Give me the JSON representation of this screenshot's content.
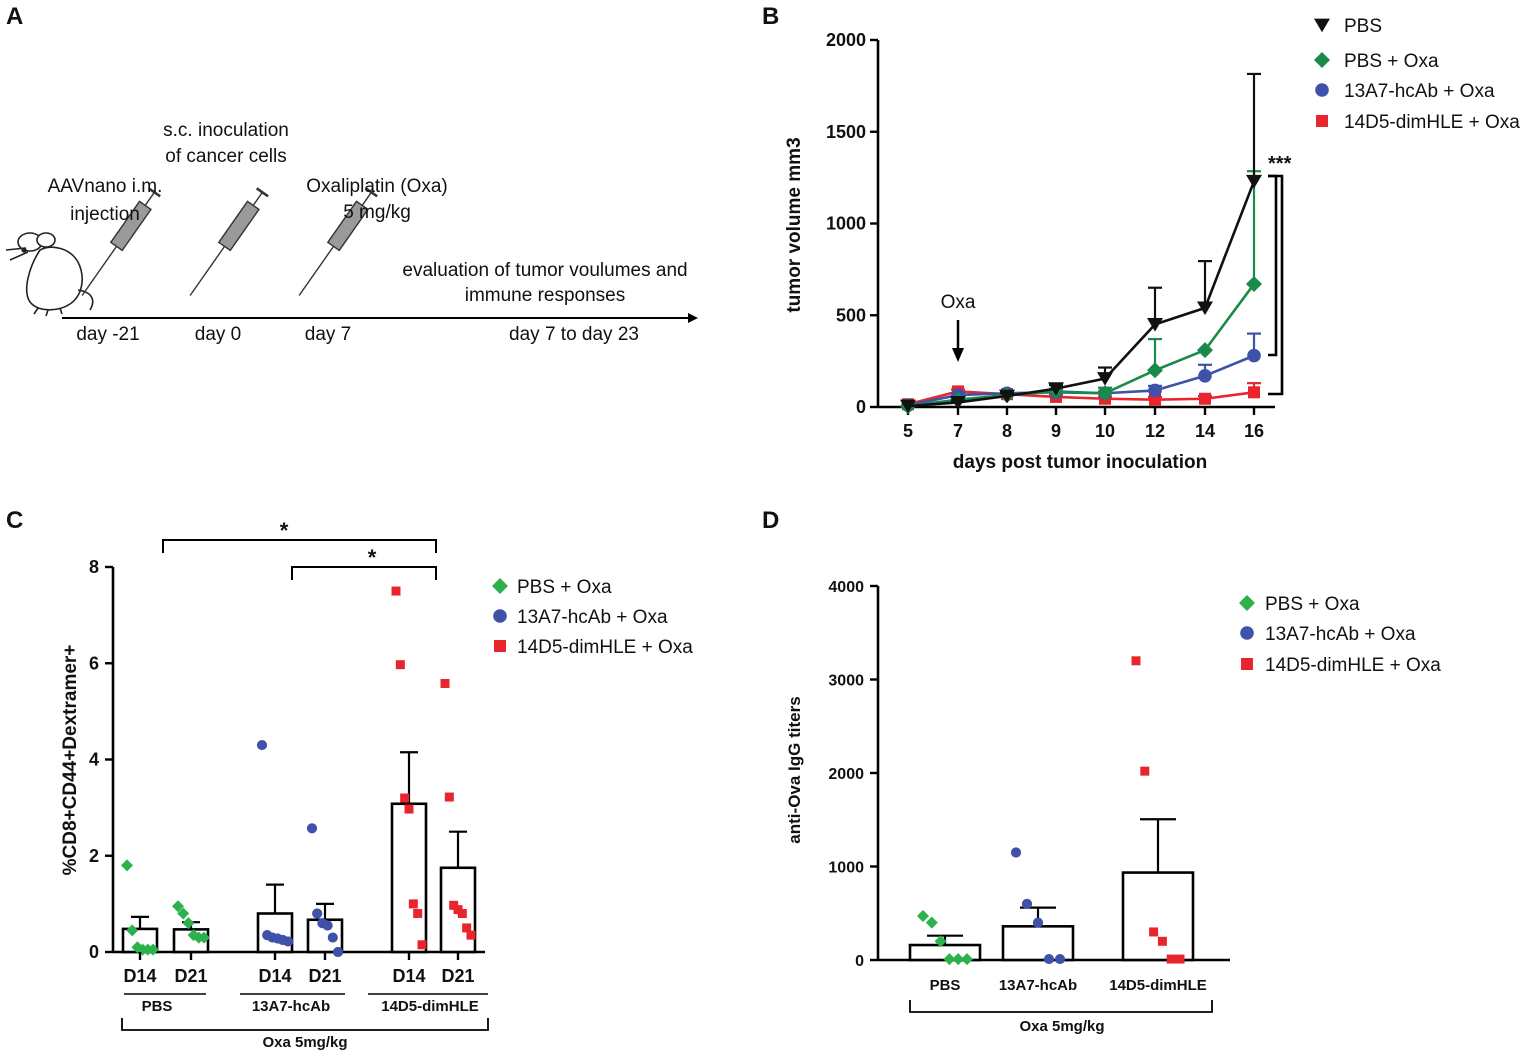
{
  "colors": {
    "black": "#111111",
    "green": "#1a8a4a",
    "lightgreen": "#2bb24c",
    "blue": "#3f51a8",
    "red": "#e8252c"
  },
  "panel_a": {
    "label": "A",
    "steps": [
      {
        "text1": "AAVnano i.m.",
        "text2": "injection",
        "day": "day -21"
      },
      {
        "text1": "s.c. inoculation",
        "text2": "of cancer cells",
        "day": "day 0"
      },
      {
        "text1": "Oxaliplatin (Oxa)",
        "text2": "5 mg/kg",
        "day": "day 7"
      },
      {
        "text1": "evaluation of tumor voulumes and",
        "text2": "immune responses",
        "day": "day 7 to day 23"
      }
    ]
  },
  "chart_data": [
    {
      "panel": "B",
      "type": "line",
      "title": "",
      "xlabel": "days post tumor inoculation",
      "ylabel": "tumor volume mm3",
      "categories": [
        "5",
        "7",
        "8",
        "9",
        "10",
        "12",
        "14",
        "16"
      ],
      "ylim": [
        0,
        2000
      ],
      "yticks": [
        "0",
        "500",
        "1000",
        "1500",
        "2000"
      ],
      "series": [
        {
          "name": "PBS",
          "color": "#111111",
          "marker": "triangle-down",
          "values": [
            5,
            25,
            60,
            100,
            155,
            450,
            540,
            1230
          ],
          "errors": [
            0,
            10,
            15,
            20,
            60,
            200,
            255,
            585
          ]
        },
        {
          "name": "PBS + Oxa",
          "color": "#1a8a4a",
          "marker": "diamond",
          "values": [
            5,
            40,
            65,
            85,
            75,
            200,
            310,
            670
          ],
          "errors": [
            0,
            10,
            12,
            15,
            30,
            170,
            0,
            615
          ]
        },
        {
          "name": "13A7-hcAb + Oxa",
          "color": "#3f51a8",
          "marker": "circle",
          "values": [
            10,
            65,
            75,
            80,
            75,
            90,
            170,
            280
          ],
          "errors": [
            0,
            10,
            10,
            10,
            10,
            25,
            60,
            120
          ]
        },
        {
          "name": "14D5-dimHLE + Oxa",
          "color": "#e8252c",
          "marker": "square",
          "values": [
            15,
            85,
            70,
            55,
            45,
            40,
            45,
            80
          ],
          "errors": [
            0,
            10,
            10,
            10,
            10,
            15,
            15,
            50
          ]
        }
      ],
      "annotations": {
        "arrow_label": "Oxa",
        "arrow_day": "7",
        "significance": "***"
      }
    },
    {
      "panel": "C",
      "type": "bar",
      "title": "",
      "xlabel": "Oxa 5mg/kg",
      "ylabel": "%CD8+CD44+Dextramer+",
      "ylim": [
        0,
        8
      ],
      "yticks": [
        "0",
        "2",
        "4",
        "6",
        "8"
      ],
      "groups": [
        "PBS",
        "13A7-hcAb",
        "14D5-dimHLE"
      ],
      "categories": [
        "D14",
        "D21",
        "D14",
        "D21",
        "D14",
        "D21"
      ],
      "legend": [
        "PBS + Oxa",
        "13A7-hcAb + Oxa",
        "14D5-dimHLE + Oxa"
      ],
      "bars": [
        {
          "group": "PBS",
          "day": "D14",
          "mean": 0.48,
          "sem": 0.25,
          "color": "#2bb24c",
          "marker": "diamond",
          "points": [
            1.8,
            0.45,
            0.1,
            0.05,
            0.05,
            0.05
          ]
        },
        {
          "group": "PBS",
          "day": "D21",
          "mean": 0.47,
          "sem": 0.15,
          "color": "#2bb24c",
          "marker": "diamond",
          "points": [
            0.95,
            0.8,
            0.6,
            0.35,
            0.3,
            0.3
          ]
        },
        {
          "group": "13A7-hcAb",
          "day": "D14",
          "mean": 0.8,
          "sem": 0.6,
          "color": "#3f51a8",
          "marker": "circle",
          "points": [
            4.3,
            0.35,
            0.3,
            0.28,
            0.25,
            0.22
          ]
        },
        {
          "group": "13A7-hcAb",
          "day": "D21",
          "mean": 0.67,
          "sem": 0.33,
          "color": "#3f51a8",
          "marker": "circle",
          "points": [
            2.57,
            0.8,
            0.6,
            0.55,
            0.3,
            0.0
          ]
        },
        {
          "group": "14D5-dimHLE",
          "day": "D14",
          "mean": 3.08,
          "sem": 1.07,
          "color": "#e8252c",
          "marker": "square",
          "points": [
            7.5,
            5.97,
            3.2,
            2.97,
            1.0,
            0.8,
            0.15
          ]
        },
        {
          "group": "14D5-dimHLE",
          "day": "D21",
          "mean": 1.75,
          "sem": 0.75,
          "color": "#e8252c",
          "marker": "square",
          "points": [
            5.58,
            3.22,
            0.97,
            0.88,
            0.8,
            0.5,
            0.35
          ]
        }
      ],
      "significance": [
        "*",
        "*"
      ]
    },
    {
      "panel": "D",
      "type": "bar",
      "title": "",
      "xlabel": "Oxa 5mg/kg",
      "ylabel": "anti-Ova IgG titers",
      "ylim": [
        0,
        4000
      ],
      "yticks": [
        "0",
        "1000",
        "2000",
        "3000",
        "4000"
      ],
      "categories": [
        "PBS",
        "13A7-hcAb",
        "14D5-dimHLE"
      ],
      "legend": [
        "PBS + Oxa",
        "13A7-hcAb + Oxa",
        "14D5-dimHLE + Oxa"
      ],
      "bars": [
        {
          "group": "PBS",
          "mean": 160,
          "sem": 100,
          "color": "#2bb24c",
          "marker": "diamond",
          "points": [
            470,
            400,
            200,
            10,
            10,
            10
          ]
        },
        {
          "group": "13A7-hcAb",
          "mean": 360,
          "sem": 200,
          "color": "#3f51a8",
          "marker": "circle",
          "points": [
            1150,
            600,
            400,
            10,
            10
          ]
        },
        {
          "group": "14D5-dimHLE",
          "mean": 935,
          "sem": 570,
          "color": "#e8252c",
          "marker": "square",
          "points": [
            3200,
            2020,
            300,
            200,
            10,
            10
          ]
        }
      ]
    }
  ]
}
